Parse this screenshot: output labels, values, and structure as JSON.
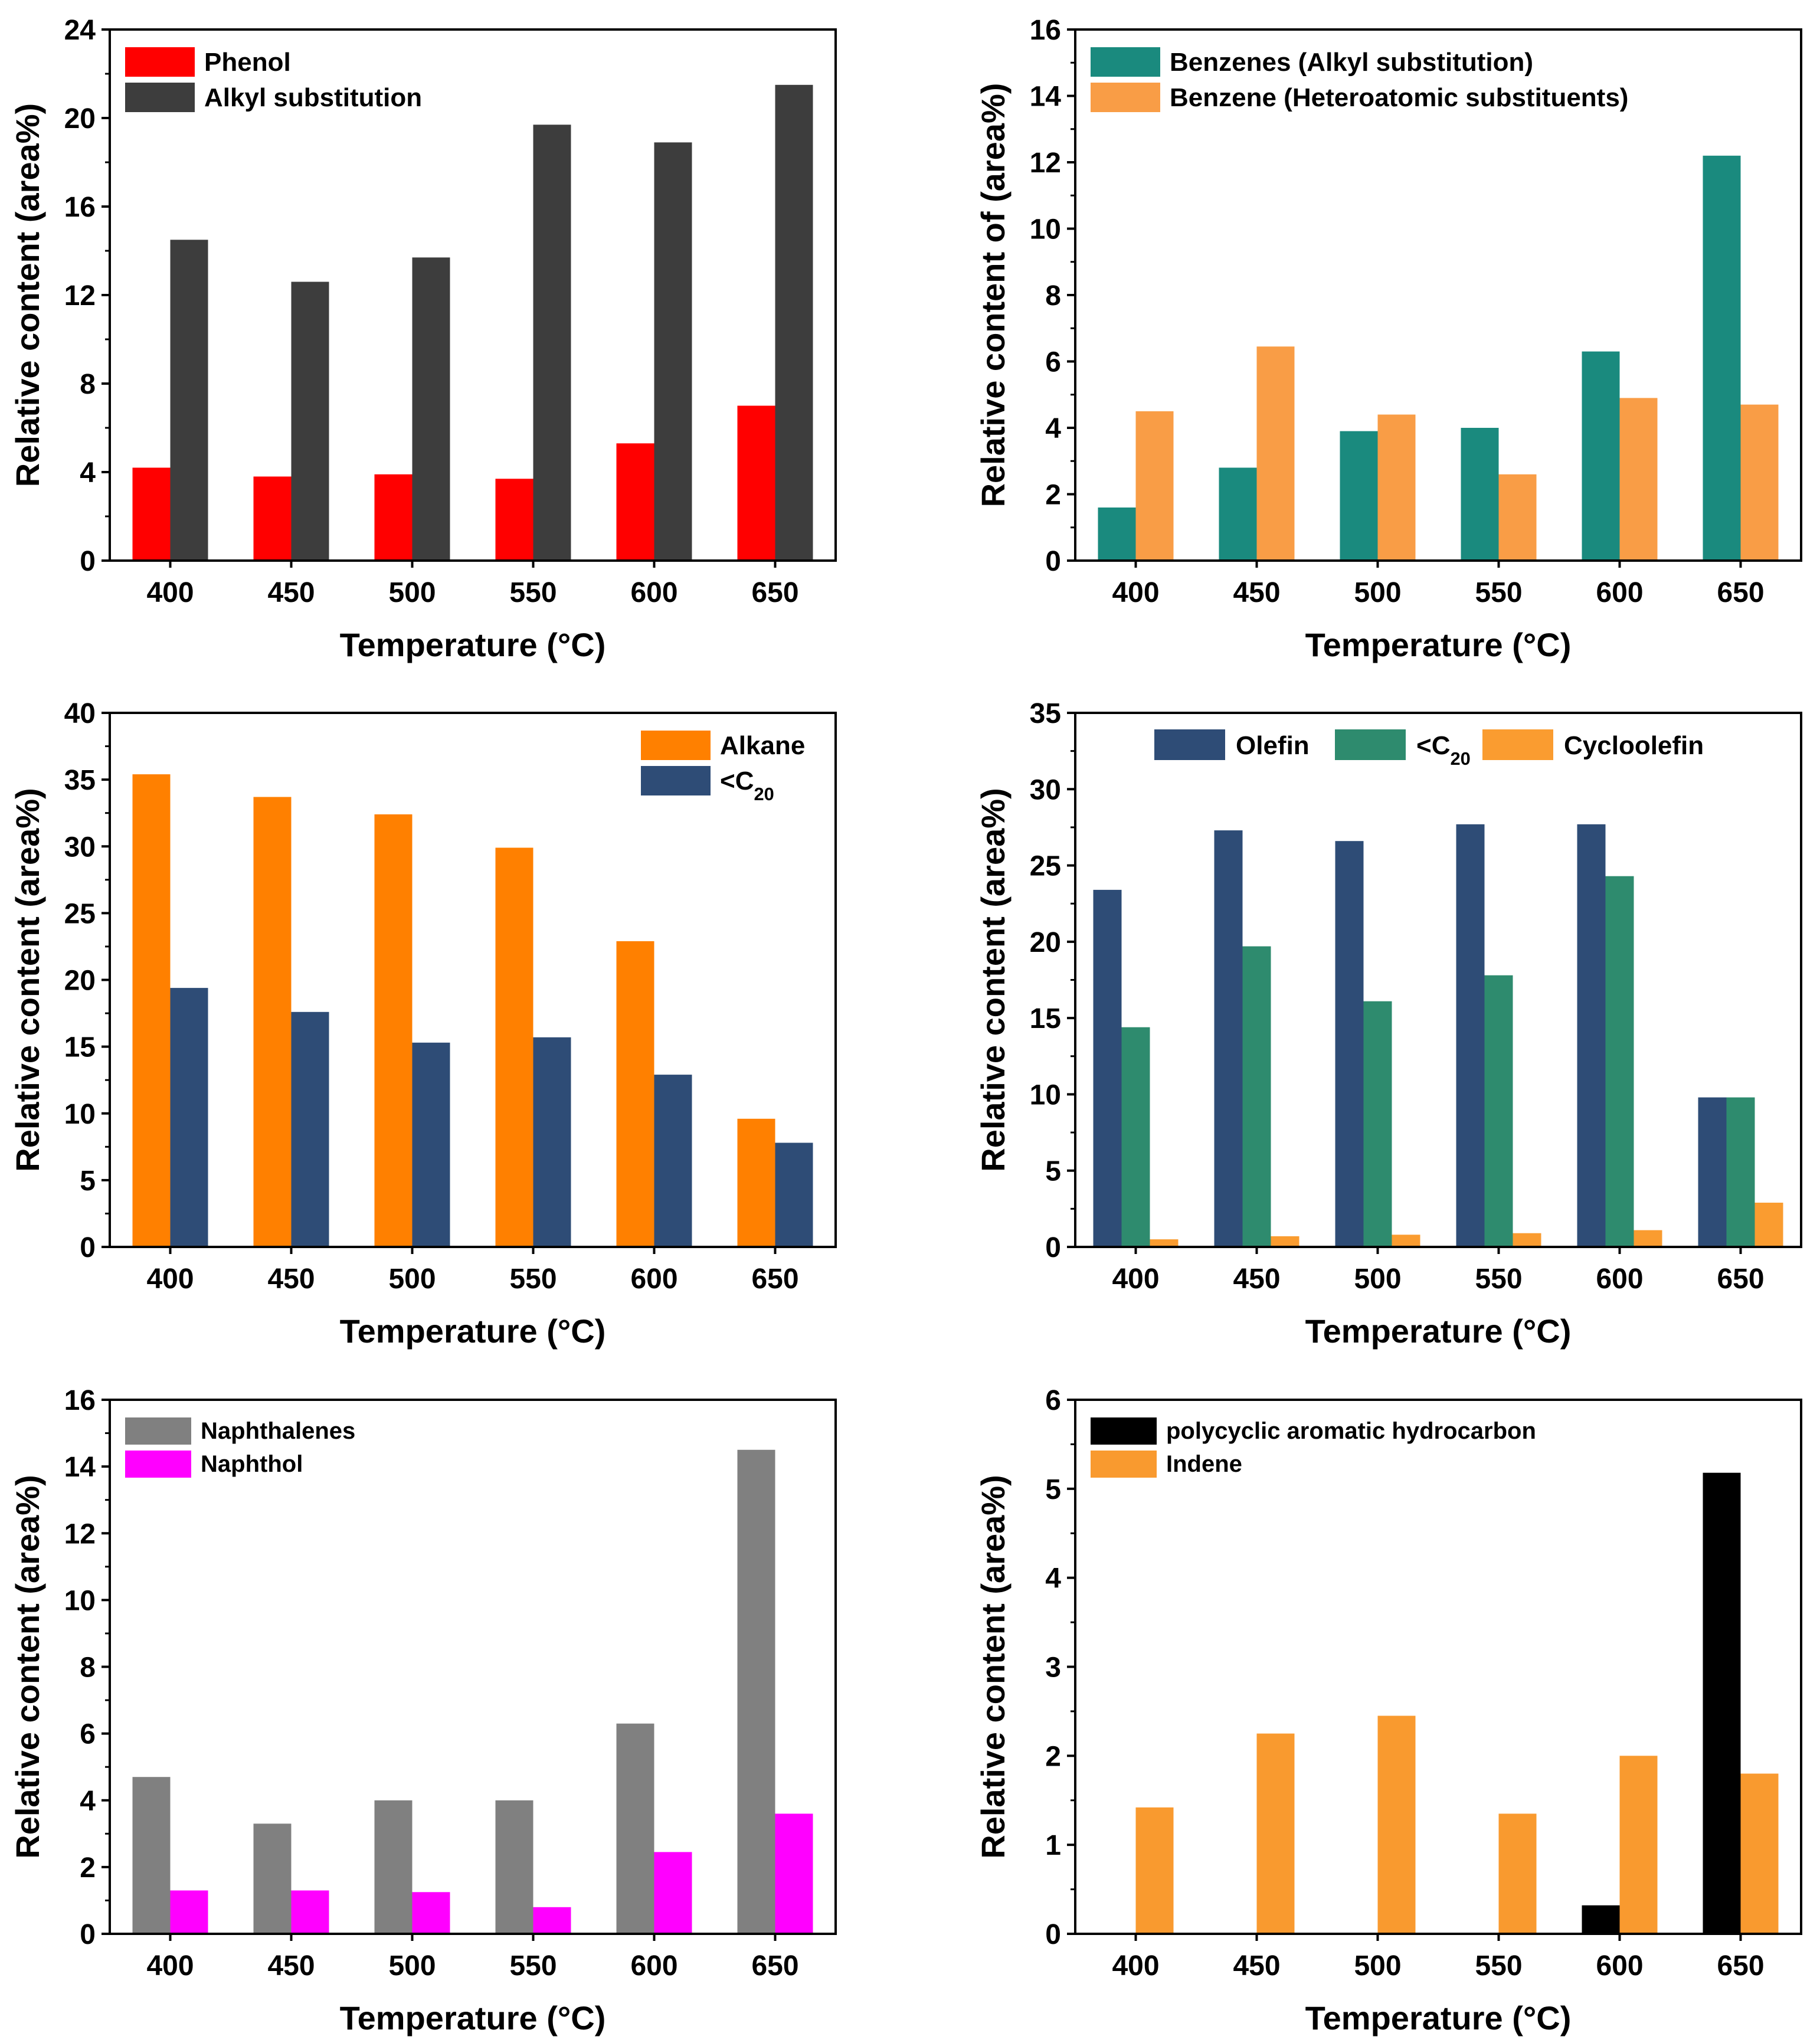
{
  "chart_data": [
    {
      "type": "bar",
      "title": "",
      "xlabel": "Temperature (°C)",
      "ylabel": "Relative content (area%)",
      "categories": [
        "400",
        "450",
        "500",
        "550",
        "600",
        "650"
      ],
      "ylim": [
        0,
        24
      ],
      "yticks": [
        0,
        4,
        8,
        12,
        16,
        20,
        24
      ],
      "legend_position": "top-left",
      "legend_layout": "vertical",
      "series": [
        {
          "name": "Phenol",
          "color": "#ff0000",
          "values": [
            4.2,
            3.8,
            3.9,
            3.7,
            5.3,
            7.0
          ]
        },
        {
          "name": "Alkyl substitution",
          "color": "#3d3d3d",
          "values": [
            14.5,
            12.6,
            13.7,
            19.7,
            18.9,
            21.5
          ]
        }
      ]
    },
    {
      "type": "bar",
      "title": "",
      "xlabel": "Temperature (°C)",
      "ylabel": "Relative content of (area%)",
      "categories": [
        "400",
        "450",
        "500",
        "550",
        "600",
        "650"
      ],
      "ylim": [
        0,
        16
      ],
      "yticks": [
        0,
        2,
        4,
        6,
        8,
        10,
        12,
        14,
        16
      ],
      "legend_position": "top-left",
      "legend_layout": "vertical",
      "series": [
        {
          "name": "Benzenes (Alkyl substitution)",
          "color": "#1a8a7e",
          "values": [
            1.6,
            2.8,
            3.9,
            4.0,
            6.3,
            12.2
          ]
        },
        {
          "name": "Benzene (Heteroatomic substituents)",
          "color": "#f99d46",
          "values": [
            4.5,
            6.45,
            4.4,
            2.6,
            4.9,
            4.7
          ]
        }
      ]
    },
    {
      "type": "bar",
      "title": "",
      "xlabel": "Temperature (°C)",
      "ylabel": "Relative content (area%)",
      "categories": [
        "400",
        "450",
        "500",
        "550",
        "600",
        "650"
      ],
      "ylim": [
        0,
        40
      ],
      "yticks": [
        0,
        5,
        10,
        15,
        20,
        25,
        30,
        35,
        40
      ],
      "legend_position": "top-right",
      "legend_layout": "vertical",
      "series": [
        {
          "name": "Alkane",
          "color": "#ff8000",
          "values": [
            35.4,
            33.7,
            32.4,
            29.9,
            22.9,
            9.6
          ]
        },
        {
          "name": "<C20",
          "color": "#2e4c76",
          "values": [
            19.4,
            17.6,
            15.3,
            15.7,
            12.9,
            7.8
          ]
        }
      ]
    },
    {
      "type": "bar",
      "title": "",
      "xlabel": "Temperature (°C)",
      "ylabel": "Relative content (area%)",
      "categories": [
        "400",
        "450",
        "500",
        "550",
        "600",
        "650"
      ],
      "ylim": [
        0,
        35
      ],
      "yticks": [
        0,
        5,
        10,
        15,
        20,
        25,
        30,
        35
      ],
      "legend_position": "top-center",
      "legend_layout": "horizontal",
      "series": [
        {
          "name": "Olefin",
          "color": "#2e4c76",
          "values": [
            23.4,
            27.3,
            26.6,
            27.7,
            27.7,
            9.8
          ]
        },
        {
          "name": "<C20",
          "color": "#2e8b6e",
          "values": [
            14.4,
            19.7,
            16.1,
            17.8,
            24.3,
            9.8
          ]
        },
        {
          "name": "Cycloolefin",
          "color": "#fa9c30",
          "values": [
            0.5,
            0.7,
            0.8,
            0.9,
            1.1,
            2.9
          ]
        }
      ]
    },
    {
      "type": "bar",
      "title": "",
      "xlabel": "Temperature (°C)",
      "ylabel": "Relative content (area%)",
      "categories": [
        "400",
        "450",
        "500",
        "550",
        "600",
        "650"
      ],
      "ylim": [
        0,
        16
      ],
      "yticks": [
        0,
        2,
        4,
        6,
        8,
        10,
        12,
        14,
        16
      ],
      "legend_position": "top-left",
      "legend_layout": "vertical",
      "series": [
        {
          "name": "Naphthalenes",
          "color": "#808080",
          "values": [
            4.7,
            3.3,
            4.0,
            4.0,
            6.3,
            14.5
          ]
        },
        {
          "name": "Naphthol",
          "color": "#ff00ff",
          "values": [
            1.3,
            1.3,
            1.25,
            0.8,
            2.45,
            3.6
          ]
        }
      ]
    },
    {
      "type": "bar",
      "title": "",
      "xlabel": "Temperature (°C)",
      "ylabel": "Relative content (area%)",
      "categories": [
        "400",
        "450",
        "500",
        "550",
        "600",
        "650"
      ],
      "ylim": [
        0,
        6
      ],
      "yticks": [
        0,
        1,
        2,
        3,
        4,
        5,
        6
      ],
      "legend_position": "top-left",
      "legend_layout": "vertical",
      "series": [
        {
          "name": "polycyclic aromatic hydrocarbon",
          "color": "#000000",
          "values": [
            0,
            0,
            0,
            0,
            0.32,
            5.18
          ]
        },
        {
          "name": "Indene",
          "color": "#f99a2f",
          "values": [
            1.42,
            2.25,
            2.45,
            1.35,
            2.0,
            1.8
          ]
        }
      ]
    }
  ]
}
